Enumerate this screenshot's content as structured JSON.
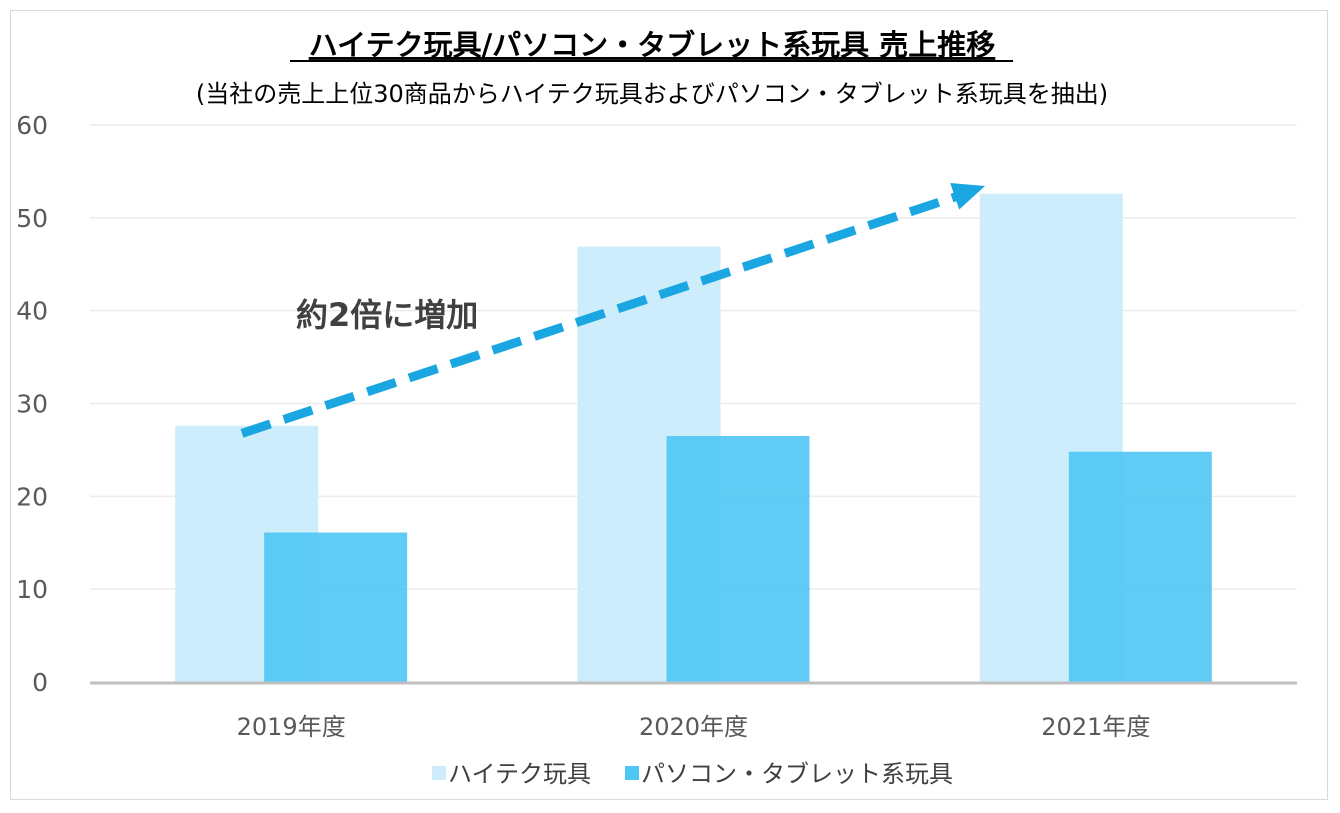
{
  "chart_data": {
    "type": "bar",
    "title": "ハイテク玩具/パソコン・タブレット系玩具 売上推移",
    "subtitle": "(当社の売上上位30商品からハイテク玩具およびパソコン・タブレット系玩具を抽出)",
    "categories": [
      "2019年度",
      "2020年度",
      "2021年度"
    ],
    "series": [
      {
        "name": "ハイテク玩具",
        "values": [
          27.6,
          46.9,
          52.6
        ],
        "color": "#CDEDFC"
      },
      {
        "name": "パソコン・タブレット系玩具",
        "values": [
          16.1,
          26.5,
          24.8
        ],
        "color": "#4FC6F4"
      }
    ],
    "ylim": [
      0,
      60
    ],
    "yticks": [
      0,
      10,
      20,
      30,
      40,
      50,
      60
    ],
    "grid": true,
    "legend": "bottom",
    "annotation": {
      "text": "約2倍に増加",
      "arrow_color": "#1AA7E1",
      "arrow_from": {
        "category": "2019年度",
        "value": 27
      },
      "arrow_to": {
        "category": "2021年度",
        "value": 53
      }
    }
  }
}
